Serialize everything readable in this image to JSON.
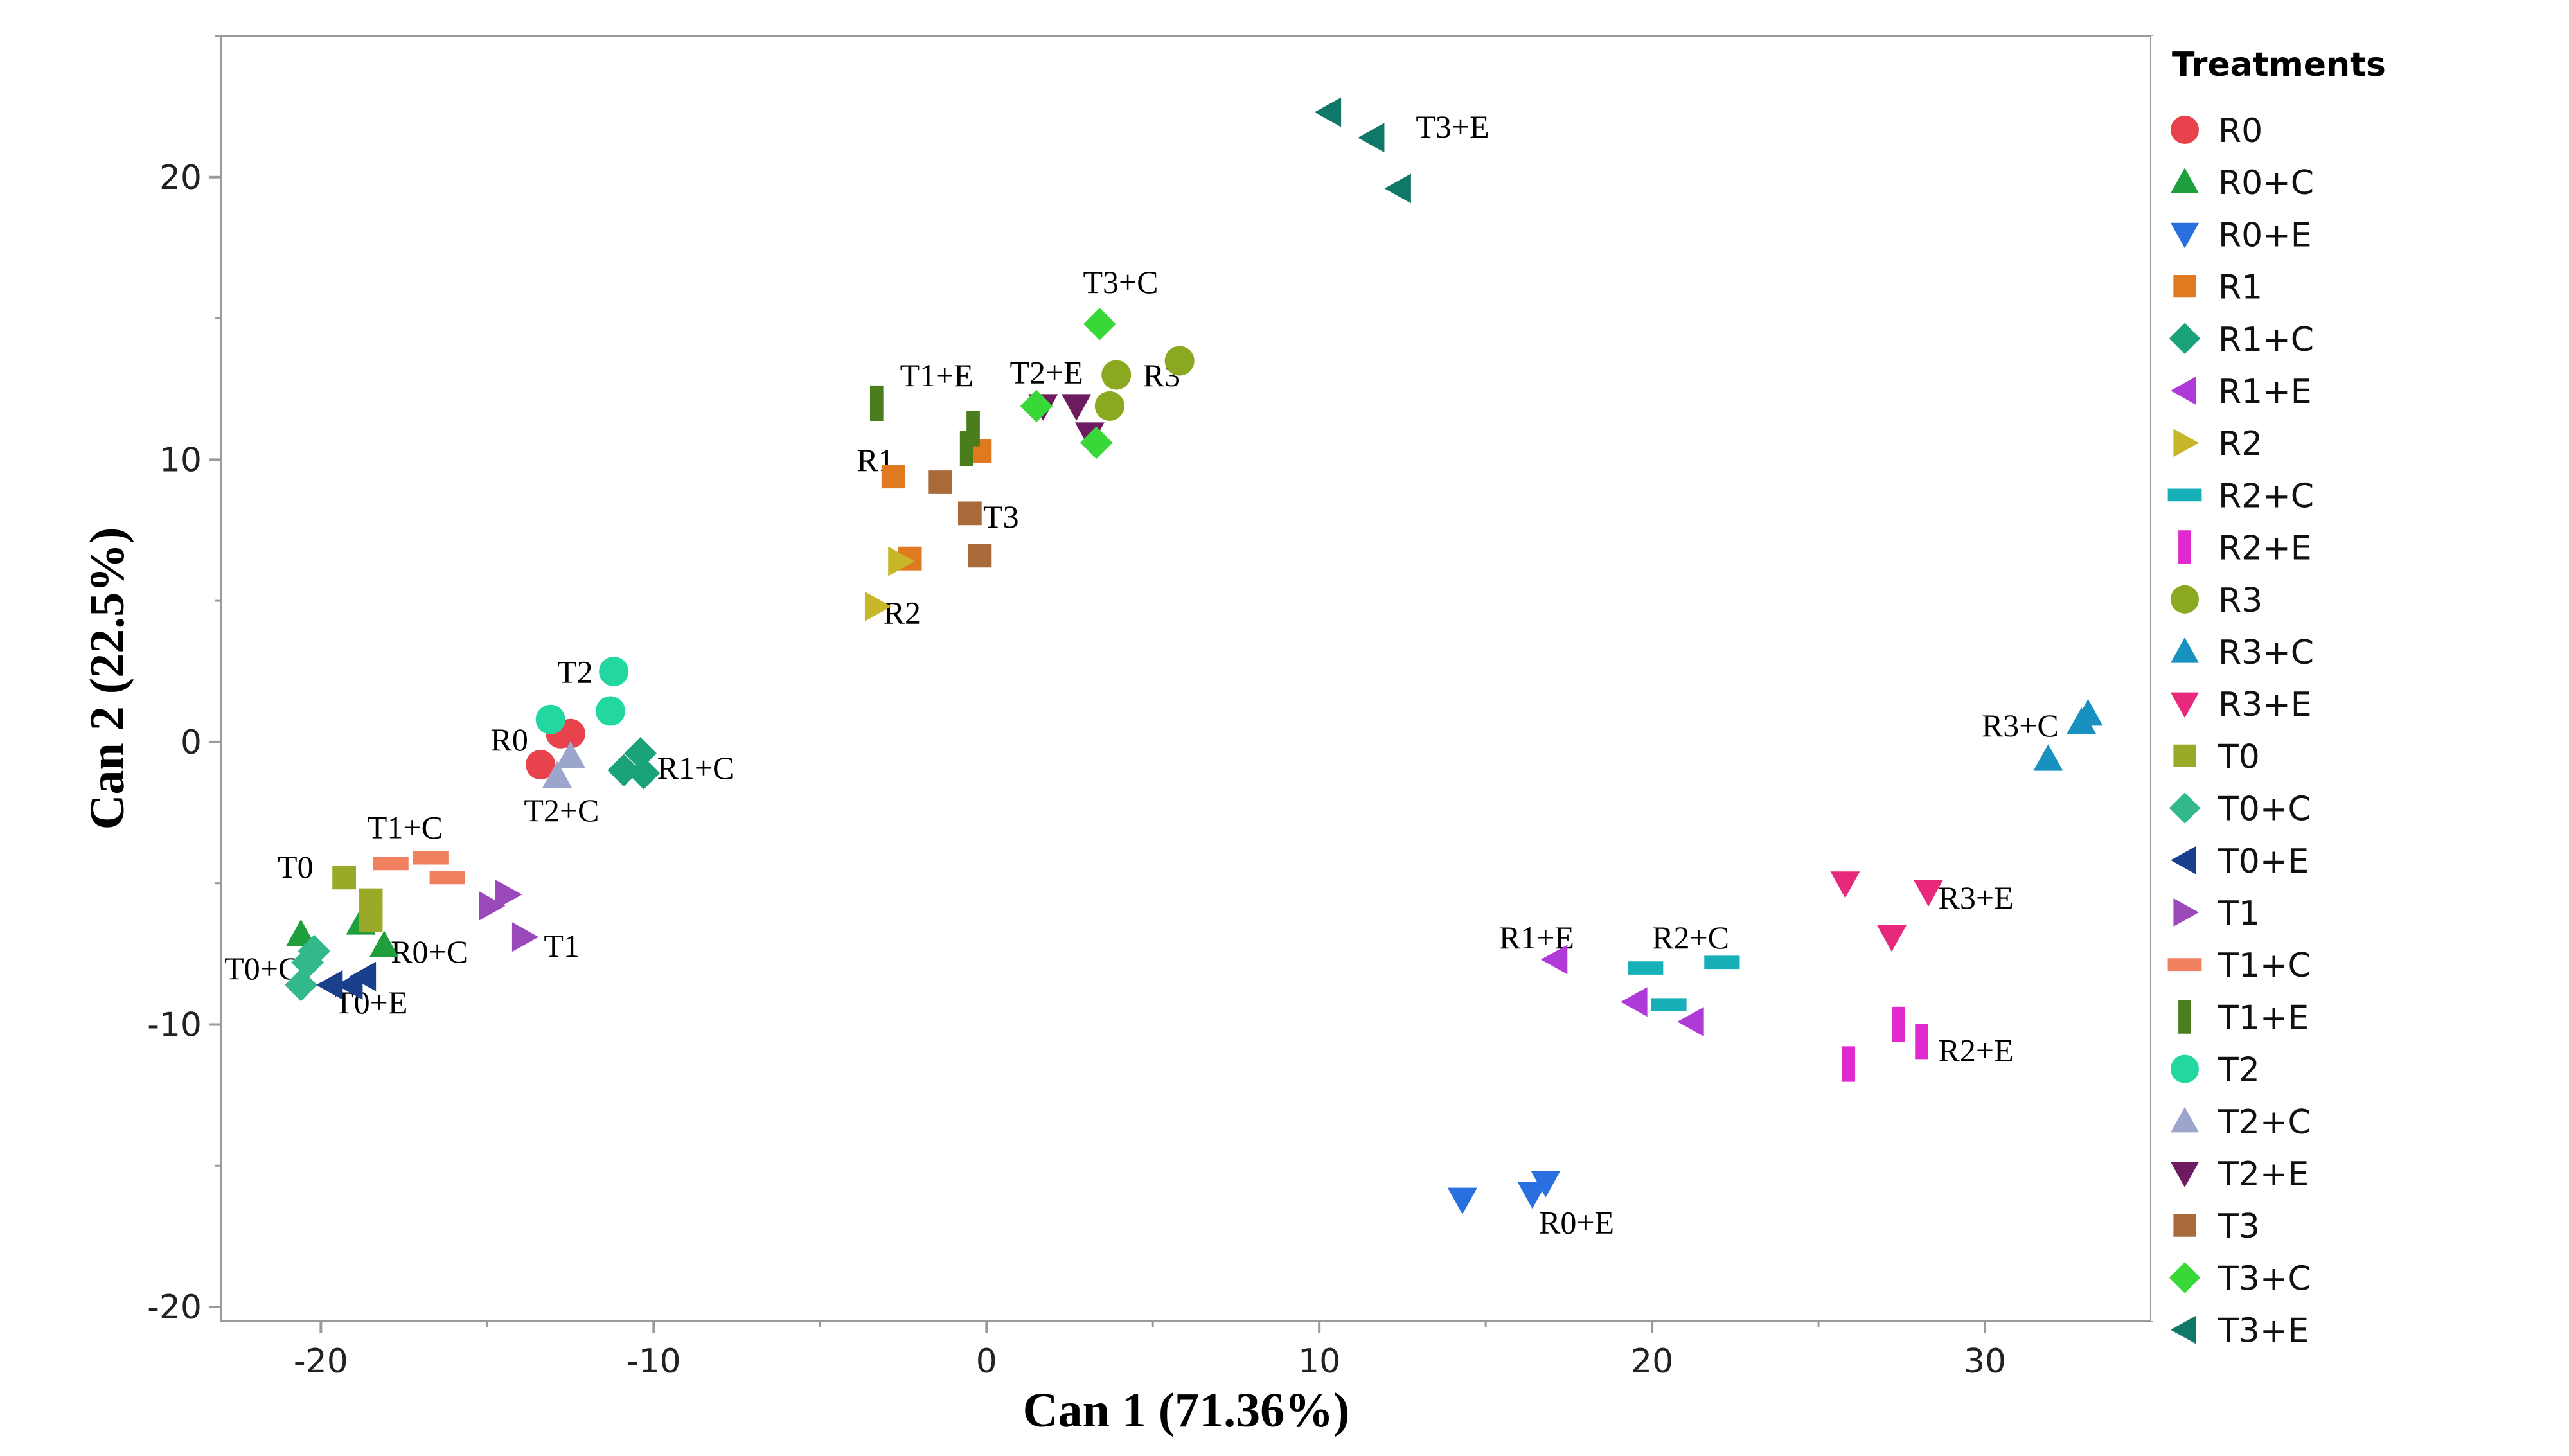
{
  "chart_data": {
    "type": "scatter",
    "title": "",
    "xlabel": "Can 1 (71.36%)",
    "ylabel": "Can 2 (22.5%)",
    "xlim": [
      -23,
      35
    ],
    "ylim": [
      -20.5,
      25
    ],
    "xticks": [
      -20,
      -10,
      0,
      10,
      20,
      30
    ],
    "yticks": [
      -20,
      -10,
      0,
      10,
      20
    ],
    "legend_title": "Treatments",
    "legend_position": "right",
    "series": [
      {
        "name": "R0",
        "marker": "circle",
        "color": "#e8424c",
        "points": [
          [
            -12.8,
            0.3
          ],
          [
            -12.5,
            0.3
          ],
          [
            -13.4,
            -0.8
          ]
        ]
      },
      {
        "name": "R0+C",
        "marker": "triangle-up",
        "color": "#1e9e3c",
        "points": [
          [
            -20.6,
            -6.8
          ],
          [
            -18.8,
            -6.4
          ],
          [
            -18.1,
            -7.2
          ]
        ]
      },
      {
        "name": "R0+E",
        "marker": "triangle-down",
        "color": "#2a6fe0",
        "points": [
          [
            14.3,
            -16.2
          ],
          [
            16.4,
            -16.0
          ],
          [
            16.8,
            -15.6
          ]
        ]
      },
      {
        "name": "R1",
        "marker": "square",
        "color": "#e07a20",
        "points": [
          [
            -2.8,
            9.4
          ],
          [
            -0.2,
            10.3
          ],
          [
            -2.3,
            6.5
          ]
        ]
      },
      {
        "name": "R1+C",
        "marker": "diamond",
        "color": "#1aa37a",
        "points": [
          [
            -10.9,
            -1.0
          ],
          [
            -10.4,
            -0.4
          ],
          [
            -10.3,
            -1.1
          ]
        ]
      },
      {
        "name": "R1+E",
        "marker": "triangle-left",
        "color": "#b03ad8",
        "points": [
          [
            17.1,
            -7.7
          ],
          [
            19.5,
            -9.2
          ],
          [
            21.2,
            -9.9
          ]
        ]
      },
      {
        "name": "R2",
        "marker": "triangle-right",
        "color": "#c7b62a",
        "points": [
          [
            -3.3,
            4.8
          ],
          [
            -2.6,
            6.4
          ]
        ]
      },
      {
        "name": "R2+C",
        "marker": "hbar",
        "color": "#17b0b8",
        "points": [
          [
            19.8,
            -8.0
          ],
          [
            20.5,
            -9.3
          ],
          [
            22.1,
            -7.8
          ]
        ]
      },
      {
        "name": "R2+E",
        "marker": "vbar",
        "color": "#e02ad0",
        "points": [
          [
            25.9,
            -11.4
          ],
          [
            27.4,
            -10.0
          ],
          [
            28.1,
            -10.6
          ]
        ]
      },
      {
        "name": "R3",
        "marker": "circle",
        "color": "#8aa820",
        "points": [
          [
            3.9,
            13.0
          ],
          [
            5.8,
            13.5
          ],
          [
            3.7,
            11.9
          ]
        ]
      },
      {
        "name": "R3+C",
        "marker": "triangle-up",
        "color": "#1890c0",
        "points": [
          [
            31.9,
            -0.6
          ],
          [
            32.9,
            0.7
          ],
          [
            33.1,
            1.0
          ]
        ]
      },
      {
        "name": "R3+E",
        "marker": "triangle-down",
        "color": "#e8287a",
        "points": [
          [
            25.8,
            -5.0
          ],
          [
            28.3,
            -5.3
          ],
          [
            27.2,
            -6.9
          ]
        ]
      },
      {
        "name": "T0",
        "marker": "square",
        "color": "#9aaa28",
        "points": [
          [
            -19.3,
            -4.8
          ],
          [
            -18.5,
            -5.6
          ],
          [
            -18.5,
            -6.3
          ]
        ]
      },
      {
        "name": "T0+C",
        "marker": "diamond",
        "color": "#33b88c",
        "points": [
          [
            -20.6,
            -8.6
          ],
          [
            -20.2,
            -7.4
          ],
          [
            -20.4,
            -7.8
          ]
        ]
      },
      {
        "name": "T0+E",
        "marker": "triangle-left",
        "color": "#1a3f8c",
        "points": [
          [
            -19.7,
            -8.6
          ],
          [
            -18.7,
            -8.3
          ],
          [
            -19.1,
            -8.6
          ]
        ]
      },
      {
        "name": "T1",
        "marker": "triangle-right",
        "color": "#9a4ab8",
        "points": [
          [
            -14.9,
            -5.8
          ],
          [
            -14.4,
            -5.4
          ],
          [
            -13.9,
            -6.9
          ]
        ]
      },
      {
        "name": "T1+C",
        "marker": "hbar",
        "color": "#f08060",
        "points": [
          [
            -17.9,
            -4.3
          ],
          [
            -16.7,
            -4.1
          ],
          [
            -16.2,
            -4.8
          ]
        ]
      },
      {
        "name": "T1+E",
        "marker": "vbar",
        "color": "#4a7e1c",
        "points": [
          [
            -3.3,
            12.0
          ],
          [
            -0.4,
            11.1
          ],
          [
            -0.6,
            10.4
          ]
        ]
      },
      {
        "name": "T2",
        "marker": "circle",
        "color": "#22d8a0",
        "points": [
          [
            -11.2,
            2.5
          ],
          [
            -11.3,
            1.1
          ],
          [
            -13.1,
            0.8
          ]
        ]
      },
      {
        "name": "T2+C",
        "marker": "triangle-up",
        "color": "#9ca6cc",
        "points": [
          [
            -12.5,
            -0.5
          ],
          [
            -12.9,
            -1.2
          ]
        ]
      },
      {
        "name": "T2+E",
        "marker": "triangle-down",
        "color": "#6e1a60",
        "points": [
          [
            1.7,
            11.9
          ],
          [
            2.7,
            11.9
          ],
          [
            3.1,
            10.9
          ]
        ]
      },
      {
        "name": "T3",
        "marker": "square",
        "color": "#a86a3a",
        "points": [
          [
            -1.4,
            9.2
          ],
          [
            -0.5,
            8.1
          ],
          [
            -0.2,
            6.6
          ]
        ]
      },
      {
        "name": "T3+C",
        "marker": "diamond",
        "color": "#38d838",
        "points": [
          [
            3.4,
            14.8
          ],
          [
            1.5,
            11.9
          ],
          [
            3.3,
            10.6
          ]
        ]
      },
      {
        "name": "T3+E",
        "marker": "triangle-left",
        "color": "#107868",
        "points": [
          [
            10.3,
            22.3
          ],
          [
            11.6,
            21.4
          ],
          [
            12.4,
            19.6
          ]
        ]
      }
    ],
    "annotations": [
      {
        "text": "T3+E",
        "x": 12.9,
        "y": 21.4
      },
      {
        "text": "T3+C",
        "x": 2.9,
        "y": 15.9
      },
      {
        "text": "T1+E",
        "x": -2.6,
        "y": 12.6
      },
      {
        "text": "T2+E",
        "x": 0.7,
        "y": 12.7
      },
      {
        "text": "R3",
        "x": 4.7,
        "y": 12.6
      },
      {
        "text": "R1",
        "x": -3.9,
        "y": 9.6
      },
      {
        "text": "T3",
        "x": -0.1,
        "y": 7.6
      },
      {
        "text": "R2",
        "x": -3.1,
        "y": 4.2
      },
      {
        "text": "T2",
        "x": -12.9,
        "y": 2.1
      },
      {
        "text": "R0",
        "x": -14.9,
        "y": -0.3
      },
      {
        "text": "R1+C",
        "x": -9.9,
        "y": -1.3
      },
      {
        "text": "T2+C",
        "x": -13.9,
        "y": -2.8
      },
      {
        "text": "T1+C",
        "x": -18.6,
        "y": -3.4
      },
      {
        "text": "T0",
        "x": -21.3,
        "y": -4.8
      },
      {
        "text": "R0+C",
        "x": -17.9,
        "y": -7.8
      },
      {
        "text": "T1",
        "x": -13.3,
        "y": -7.6
      },
      {
        "text": "T0+C",
        "x": -22.9,
        "y": -8.4
      },
      {
        "text": "T0+E",
        "x": -19.6,
        "y": -9.6
      },
      {
        "text": "R1+E",
        "x": 15.4,
        "y": -7.3
      },
      {
        "text": "R2+C",
        "x": 20.0,
        "y": -7.3
      },
      {
        "text": "R3+E",
        "x": 28.6,
        "y": -5.9
      },
      {
        "text": "R2+E",
        "x": 28.6,
        "y": -11.3
      },
      {
        "text": "R3+C",
        "x": 29.9,
        "y": 0.2
      },
      {
        "text": "R0+E",
        "x": 16.6,
        "y": -17.4
      }
    ]
  }
}
